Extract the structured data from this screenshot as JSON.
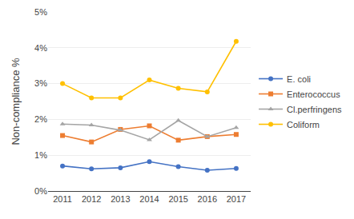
{
  "chart_data": {
    "type": "line",
    "x": [
      2011,
      2012,
      2013,
      2014,
      2015,
      2016,
      2017
    ],
    "series": [
      {
        "name": "E. coli",
        "color": "#4472C4",
        "marker": "circle",
        "values": [
          0.7,
          0.62,
          0.65,
          0.82,
          0.68,
          0.58,
          0.63
        ]
      },
      {
        "name": "Enterococcus",
        "color": "#ED7D31",
        "marker": "square",
        "values": [
          1.55,
          1.37,
          1.72,
          1.82,
          1.42,
          1.52,
          1.58
        ]
      },
      {
        "name": "Cl.perfringens",
        "color": "#A5A5A5",
        "marker": "triangle-up",
        "values": [
          1.87,
          1.84,
          1.7,
          1.43,
          1.97,
          1.52,
          1.77
        ]
      },
      {
        "name": "Coliform",
        "color": "#FFC000",
        "marker": "circle",
        "values": [
          3.0,
          2.6,
          2.6,
          3.1,
          2.87,
          2.77,
          4.18
        ]
      }
    ],
    "ylabel": "Non-compliance %",
    "xlim": [
      2010.5,
      2017.5
    ],
    "xticks": [
      2011,
      2012,
      2013,
      2014,
      2015,
      2016,
      2017
    ],
    "ylim": [
      0,
      5
    ],
    "yticks": [
      {
        "value": 0,
        "label": "0%"
      },
      {
        "value": 1,
        "label": "1%"
      },
      {
        "value": 2,
        "label": "2%"
      },
      {
        "value": 3,
        "label": "3%"
      },
      {
        "value": 4,
        "label": "4%"
      },
      {
        "value": 5,
        "label": "5%"
      }
    ],
    "grid": "y",
    "legend": "right"
  }
}
